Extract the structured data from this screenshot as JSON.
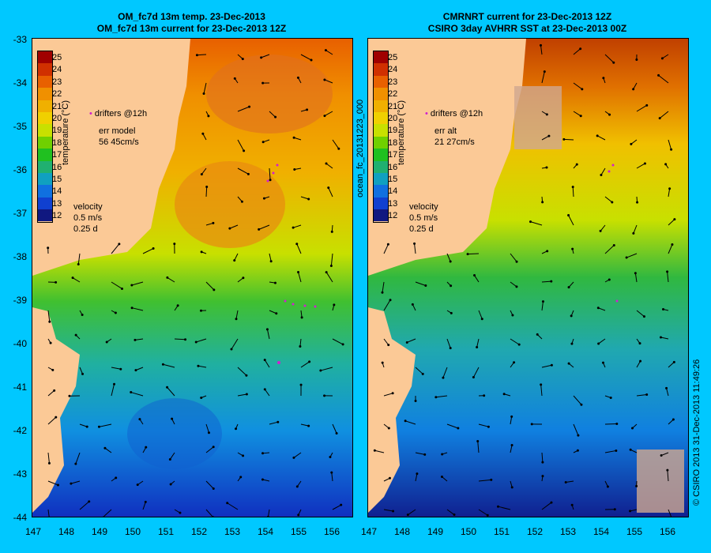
{
  "left_panel": {
    "title_line1": "OM_fc7d 13m temp. 23-Dec-2013",
    "title_line2": "OM_fc7d 13m current for 23-Dec-2013 12Z",
    "drifters": "drifters @12h",
    "err_label": "err model",
    "err_value": "56 45cm/s",
    "velocity_label": "velocity",
    "velocity_scale": "0.5 m/s",
    "velocity_time": "0.25 d"
  },
  "right_panel": {
    "title_line1": "CMRNRT current for 23-Dec-2013 12Z",
    "title_line2": "CSIRO 3day AVHRR SST at 23-Dec-2013 00Z",
    "drifters": "drifters @12h",
    "err_label": "err alt",
    "err_value": "21 27cm/s",
    "velocity_label": "velocity",
    "velocity_scale": "0.5 m/s",
    "velocity_time": "0.25 d"
  },
  "colorbar": {
    "title": "temperature (°C)",
    "ticks": [
      "25",
      "24",
      "23",
      "22",
      "21",
      "20",
      "19",
      "18",
      "17",
      "16",
      "15",
      "14",
      "13",
      "12"
    ],
    "colors": [
      "#a00000",
      "#d03000",
      "#e86000",
      "#f09000",
      "#f0b000",
      "#f0d000",
      "#c8e000",
      "#70d000",
      "#20c020",
      "#20b070",
      "#10a0c0",
      "#1070e0",
      "#1040d0",
      "#101880"
    ]
  },
  "axes": {
    "y_ticks": [
      "-33",
      "-34",
      "-35",
      "-36",
      "-37",
      "-38",
      "-39",
      "-40",
      "-41",
      "-42",
      "-43",
      "-44"
    ],
    "x_ticks": [
      "147",
      "148",
      "149",
      "150",
      "151",
      "152",
      "153",
      "154",
      "155",
      "156"
    ]
  },
  "side_labels": {
    "middle": "ocean_fc_20131223_000",
    "right": "© CSIRO 2013   31-Dec-2013 11:49:26"
  },
  "colors": {
    "background": "#00c8ff",
    "land": "#fbc996",
    "drifters": "#d020d0"
  }
}
